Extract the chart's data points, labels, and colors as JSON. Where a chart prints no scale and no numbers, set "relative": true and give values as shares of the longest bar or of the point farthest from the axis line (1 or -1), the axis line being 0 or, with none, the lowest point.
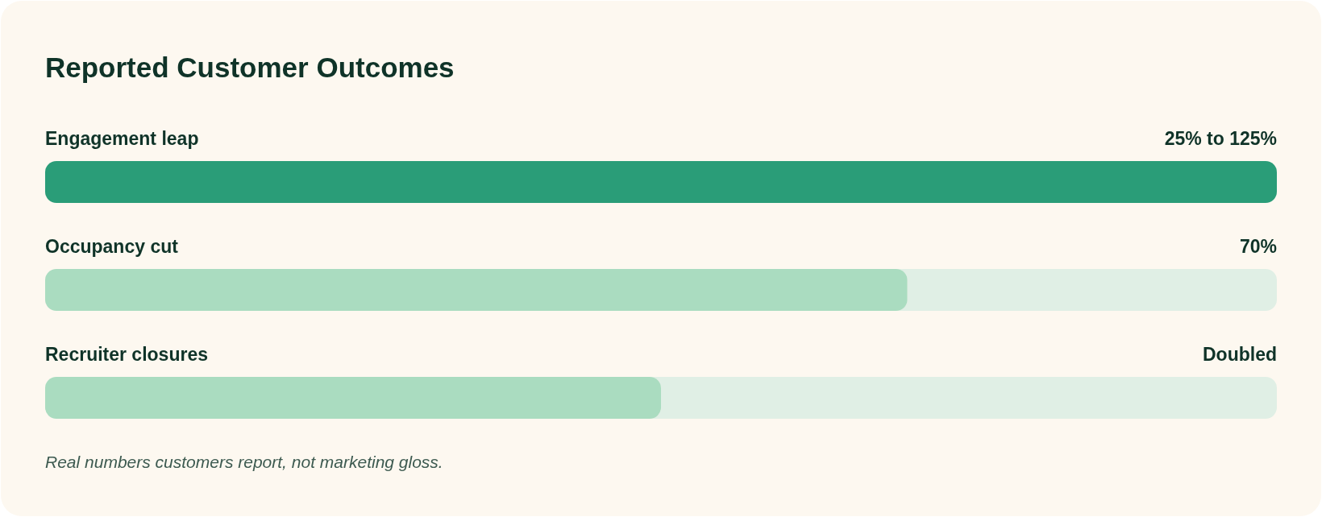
{
  "chart_data": {
    "type": "bar",
    "orientation": "horizontal",
    "relative": true,
    "title": "Reported Customer Outcomes",
    "categories": [
      "Engagement leap",
      "Occupancy cut",
      "Recruiter closures"
    ],
    "values": [
      1,
      0.7,
      0.5
    ],
    "colors": [
      "#2a9d78",
      "#aadcc0",
      "#aadcc0"
    ],
    "annotations": [
      "25% to 125%",
      "70%",
      "Doubled",
      "Real numbers customers report, not marketing gloss."
    ]
  }
}
